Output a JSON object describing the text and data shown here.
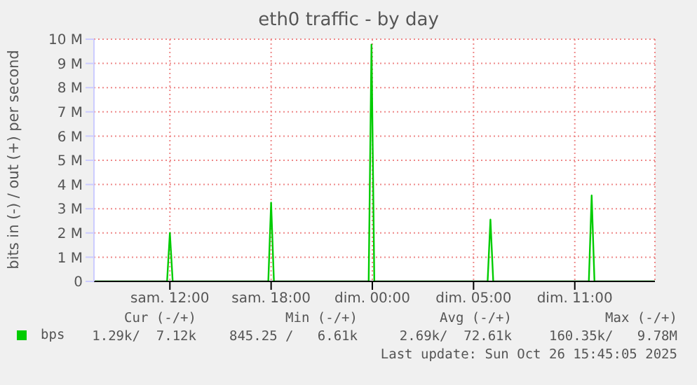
{
  "chart_data": {
    "type": "line",
    "title": "eth0 traffic - by day",
    "ylabel": "bits in (-) / out (+) per second",
    "xlim": [
      "2025-10-25T05:30",
      "2025-10-26T14:45"
    ],
    "xticks": [
      {
        "value": "2025-10-25T10:00",
        "label": "sam. 12:00"
      },
      {
        "value": "2025-10-25T16:00",
        "label": "sam. 18:00"
      },
      {
        "value": "2025-10-25T22:00",
        "label": "dim. 00:00"
      },
      {
        "value": "2025-10-26T04:00",
        "label": "dim. 05:00"
      },
      {
        "value": "2025-10-26T10:00",
        "label": "dim. 11:00"
      }
    ],
    "ylim": [
      0,
      10000000
    ],
    "yticks": [
      0,
      {
        "value": 1000000,
        "label": "1 M"
      },
      {
        "value": 2000000,
        "label": "2 M"
      },
      {
        "value": 3000000,
        "label": "3 M"
      },
      {
        "value": 4000000,
        "label": "4 M"
      },
      {
        "value": 5000000,
        "label": "5 M"
      },
      {
        "value": 6000000,
        "label": "6 M"
      },
      {
        "value": 7000000,
        "label": "7 M"
      },
      {
        "value": 8000000,
        "label": "8 M"
      },
      {
        "value": 9000000,
        "label": "9 M"
      },
      {
        "value": 10000000,
        "label": "10 M"
      }
    ],
    "grid": true,
    "legend": "bottom",
    "marker": "none",
    "line_style": "solid",
    "series": [
      {
        "name": "bps",
        "color": "#00cc00",
        "x": [
          "2025-10-25T05:30",
          "2025-10-25T09:50",
          "2025-10-25T10:00",
          "2025-10-25T10:10",
          "2025-10-25T15:50",
          "2025-10-25T16:00",
          "2025-10-25T16:10",
          "2025-10-25T21:47",
          "2025-10-25T21:57",
          "2025-10-25T22:07",
          "2025-10-26T04:50",
          "2025-10-26T05:00",
          "2025-10-26T05:10",
          "2025-10-26T10:50",
          "2025-10-26T11:00",
          "2025-10-26T11:10",
          "2025-10-26T14:45"
        ],
        "values": [
          0,
          0,
          2000000,
          0,
          0,
          3250000,
          0,
          0,
          9780000,
          0,
          0,
          2550000,
          0,
          0,
          3550000,
          0,
          0
        ]
      }
    ],
    "annotations": [
      "Cur (-/+)",
      "Min (-/+)",
      "Avg (-/+)",
      "Max (-/+)",
      "1.29k/  7.12k",
      "845.25 /   6.61k",
      "2.69k/  72.61k",
      "160.35k/   9.78M",
      "Last update: Sun Oct 26 15:45:05 2025"
    ]
  }
}
